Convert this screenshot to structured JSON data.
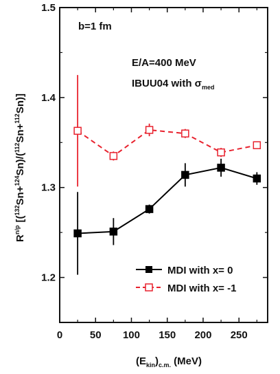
{
  "chart_data": {
    "type": "line",
    "x": [
      25,
      75,
      125,
      175,
      225,
      275
    ],
    "xlim": [
      0,
      290
    ],
    "ylim": [
      1.15,
      1.5
    ],
    "xticks": [
      "0",
      "50",
      "100",
      "150",
      "200",
      "250"
    ],
    "yticks": [
      "1.2",
      "1.3",
      "1.4",
      "1.5"
    ],
    "xlabel": {
      "base": "(E",
      "sub1": "kin",
      "mid": ")",
      "sub2": "c.m.",
      "tail": " (MeV)"
    },
    "ylabel": {
      "parts": [
        "R",
        "n/p",
        " [(",
        "132",
        "Sn+",
        "124",
        "Sn)/(",
        "112",
        "Sn+",
        "112",
        "Sn)]"
      ]
    },
    "annotations": {
      "b": "b=1 fm",
      "energy": "E/A=400 MeV",
      "model": "IBUU04 with σ",
      "model_sub": "med"
    },
    "series": [
      {
        "name": "MDI with x= 0",
        "color": "#000000",
        "marker": "filled-square",
        "line": "solid",
        "values": [
          1.249,
          1.251,
          1.276,
          1.314,
          1.322,
          1.31
        ],
        "err": [
          0.046,
          0.015,
          0.005,
          0.013,
          0.01,
          0.007
        ]
      },
      {
        "name": "MDI with x= -1",
        "color": "#e8212d",
        "marker": "open-square",
        "line": "dashed",
        "values": [
          1.363,
          1.335,
          1.364,
          1.36,
          1.339,
          1.347
        ],
        "err": [
          0.062,
          0.005,
          0.007,
          0.005,
          0.005,
          0.003
        ]
      }
    ],
    "legend_position": "bottom-right"
  }
}
